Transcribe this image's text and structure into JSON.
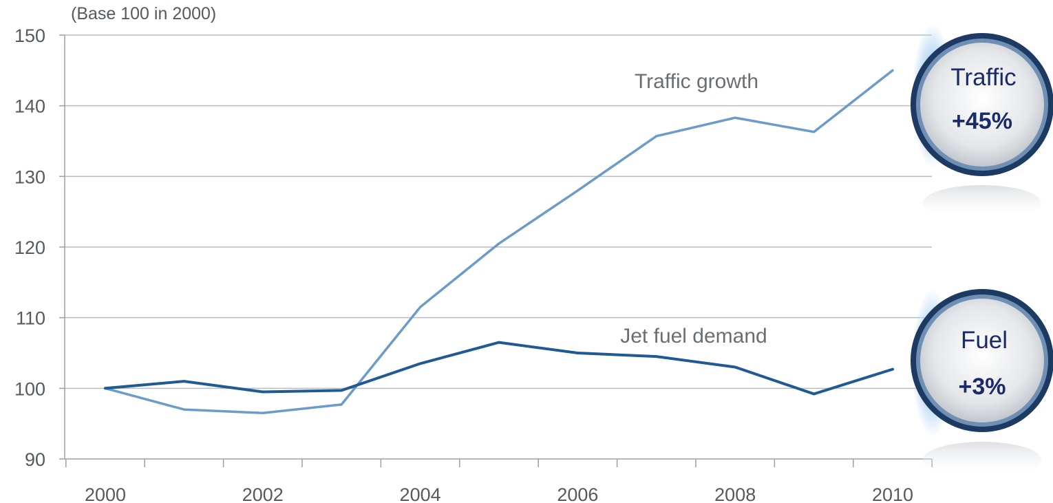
{
  "chart_data": {
    "type": "line",
    "unit_label": "(Base 100 in 2000)",
    "x": [
      2000,
      2001,
      2002,
      2003,
      2004,
      2005,
      2006,
      2007,
      2008,
      2009,
      2010
    ],
    "x_tick_labels": [
      "2000",
      "2002",
      "2004",
      "2006",
      "2008",
      "2010"
    ],
    "y_ticks": [
      90,
      100,
      110,
      120,
      130,
      140,
      150
    ],
    "xlim": [
      1999.5,
      2010.5
    ],
    "ylim": [
      90,
      150
    ],
    "grid": "horizontal",
    "series": [
      {
        "name": "Traffic growth",
        "color": "#6b9bc8",
        "values": [
          100,
          97,
          96.5,
          97.7,
          111.5,
          120.5,
          128,
          135.7,
          138.3,
          136.3,
          145
        ]
      },
      {
        "name": "Jet fuel demand",
        "color": "#1f5a92",
        "values": [
          100,
          101,
          99.5,
          99.7,
          103.5,
          106.5,
          105,
          104.5,
          103,
          99.2,
          102.7
        ]
      }
    ],
    "badges": [
      {
        "title": "Traffic",
        "value": "+45%"
      },
      {
        "title": "Fuel",
        "value": "+3%"
      }
    ]
  }
}
